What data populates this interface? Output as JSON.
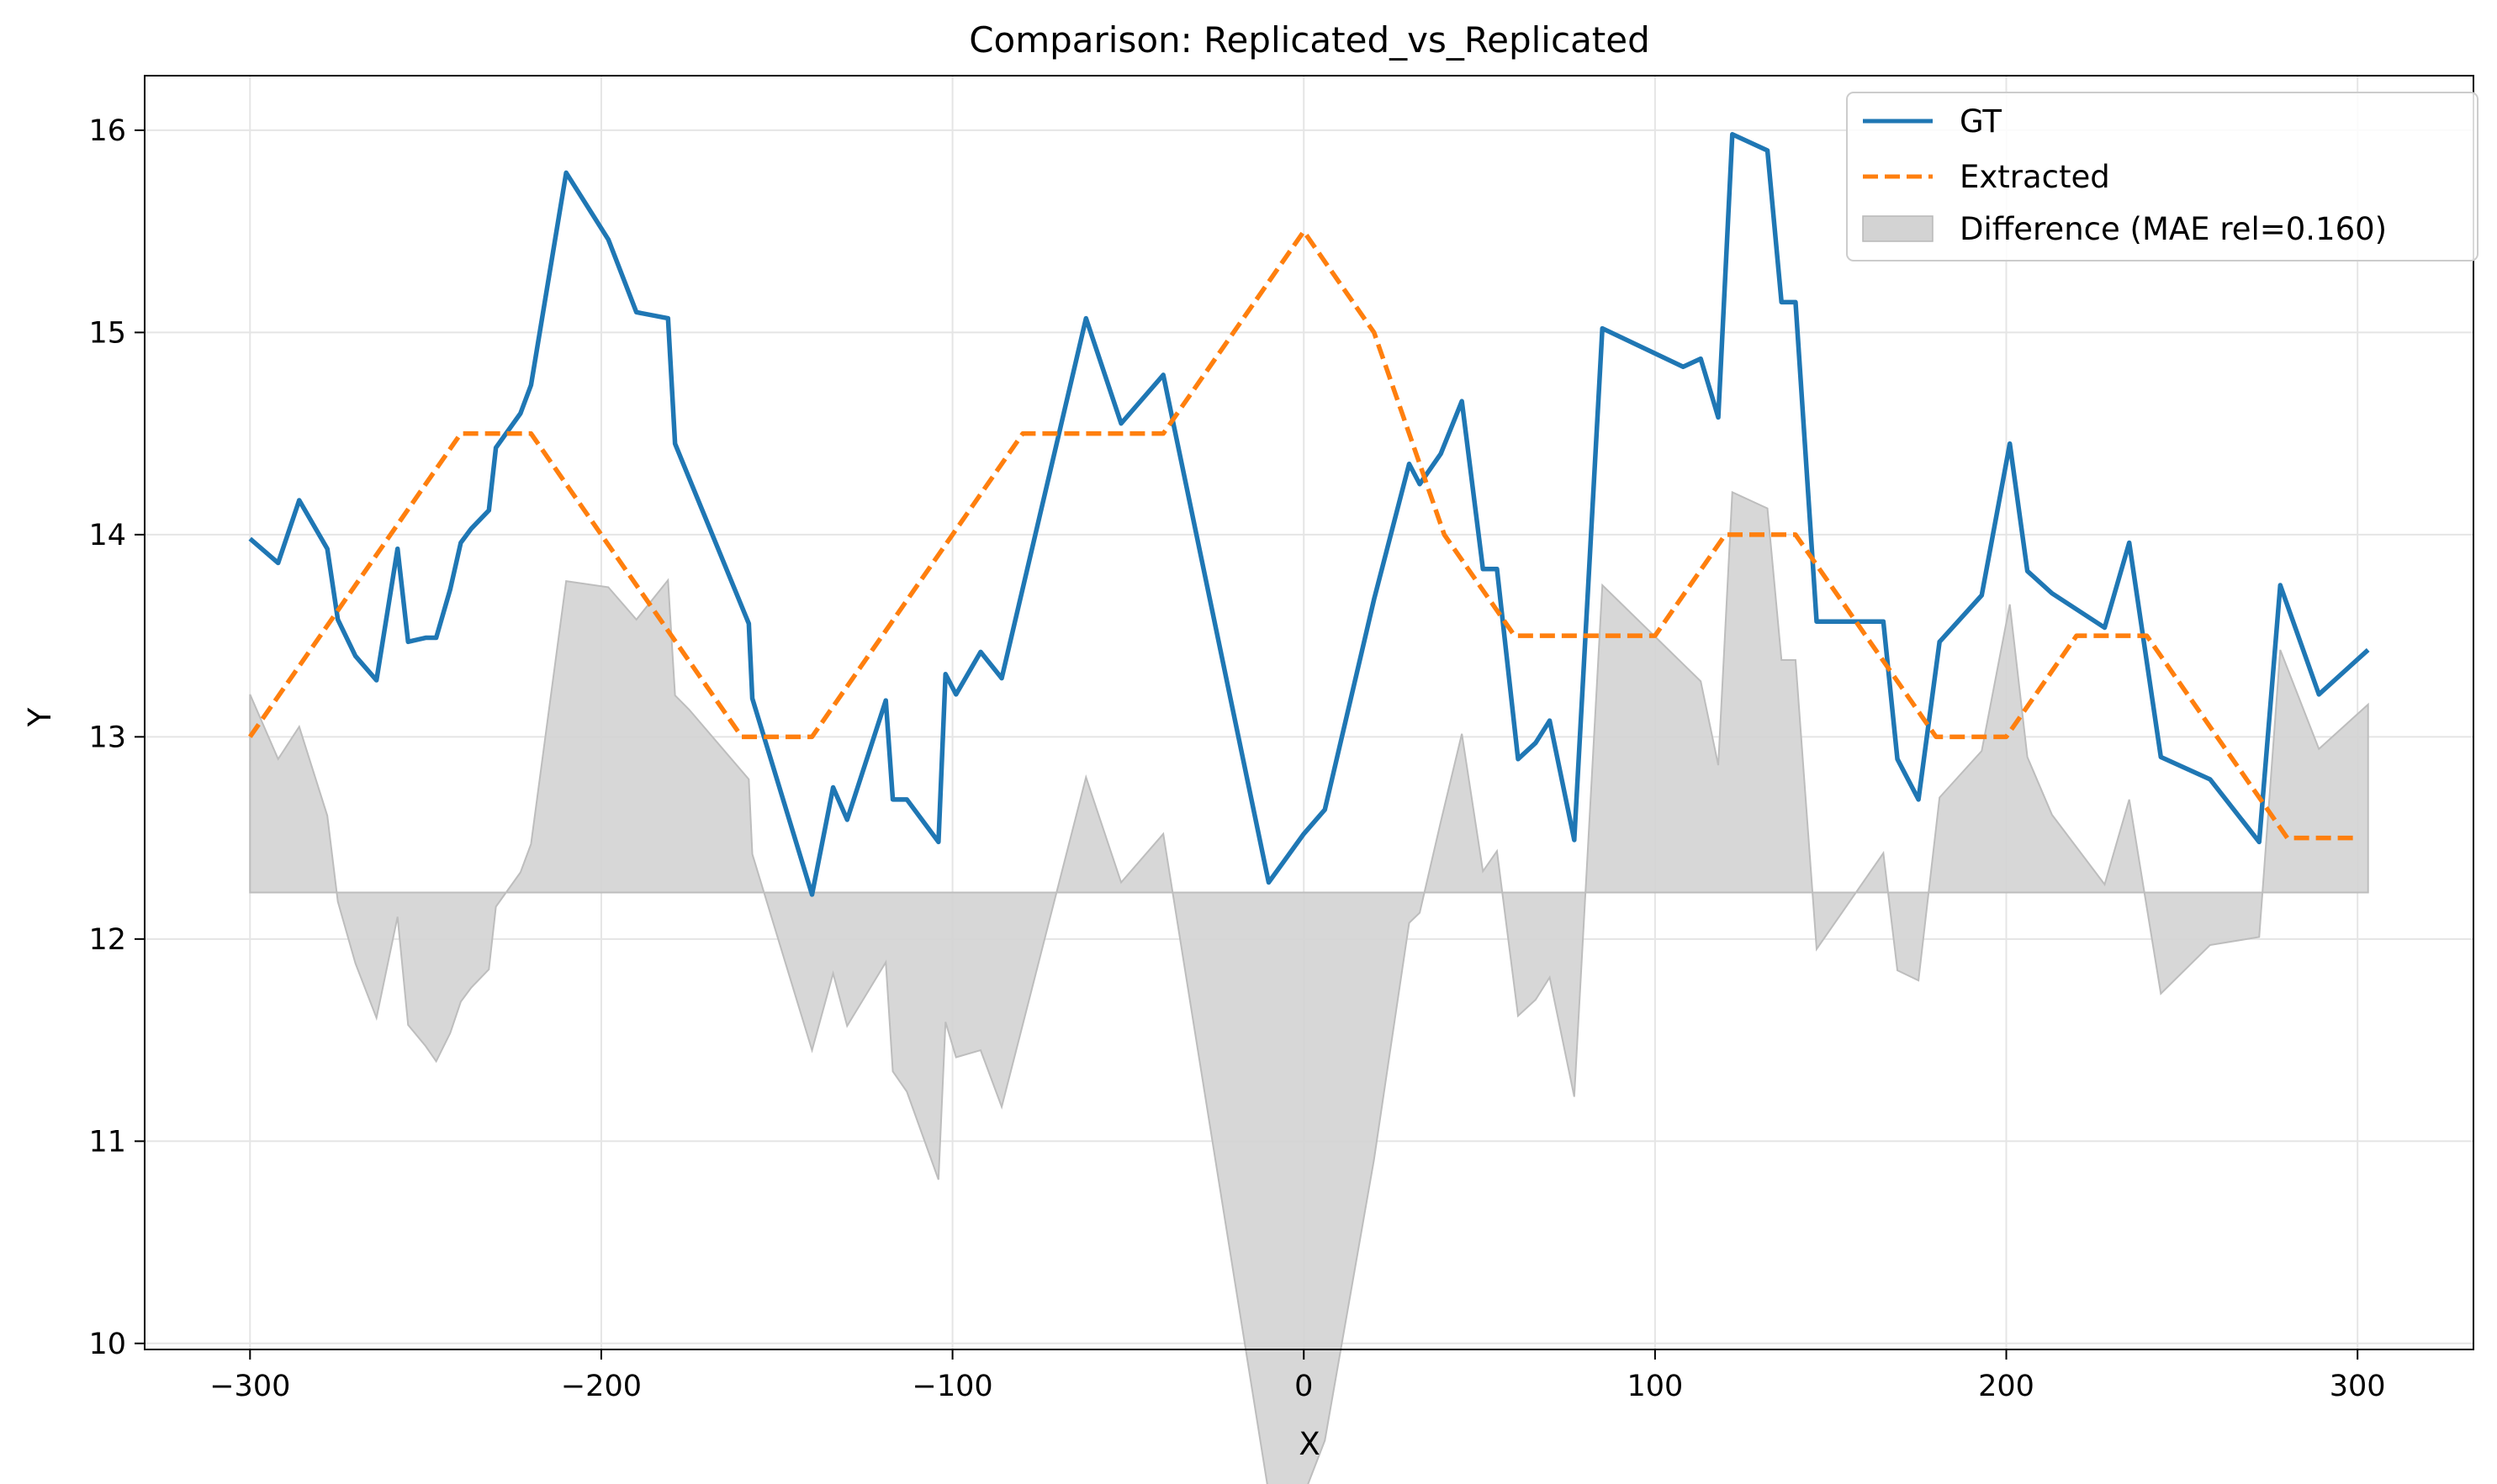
{
  "chart_data": {
    "type": "line",
    "title": "Comparison: Replicated_vs_Replicated",
    "xlabel": "X",
    "ylabel": "Y",
    "xlim": [
      -330,
      333
    ],
    "ylim": [
      9.97,
      16.27
    ],
    "grid": true,
    "legend_position": "top-right",
    "x_ticks": [
      -300,
      -200,
      -100,
      0,
      100,
      200,
      300
    ],
    "x_tick_labels": [
      "−300",
      "−200",
      "−100",
      "0",
      "100",
      "200",
      "300"
    ],
    "y_ticks": [
      10,
      11,
      12,
      13,
      14,
      15,
      16
    ],
    "y_tick_labels": [
      "10",
      "11",
      "12",
      "13",
      "14",
      "15",
      "16"
    ],
    "series": [
      {
        "name": "GT",
        "style": "solid",
        "color": "#1f77b4",
        "x": [
          -300,
          -292,
          -286,
          -278,
          -275,
          -270,
          -264,
          -258,
          -255,
          -250,
          -247,
          -243,
          -240,
          -237,
          -232,
          -230,
          -223,
          -220,
          -210,
          -198,
          -190,
          -181,
          -179,
          -175,
          -158,
          -157,
          -140,
          -134,
          -130,
          -119,
          -117,
          -113,
          -104,
          -102,
          -99,
          -92,
          -86,
          -62,
          -52,
          -40,
          -10,
          0,
          6,
          20,
          30,
          33,
          39,
          45,
          51,
          55,
          61,
          66,
          70,
          77,
          85,
          108,
          113,
          118,
          122,
          132,
          136,
          140,
          146,
          165,
          169,
          175,
          181,
          193,
          201,
          206,
          213,
          228,
          235,
          244,
          258,
          272,
          278,
          289,
          303
        ],
        "y": [
          13.98,
          13.86,
          14.17,
          13.93,
          13.58,
          13.4,
          13.28,
          13.93,
          13.47,
          13.49,
          13.49,
          13.73,
          13.96,
          14.03,
          14.12,
          14.43,
          14.6,
          14.74,
          15.79,
          15.46,
          15.1,
          15.07,
          14.45,
          14.28,
          13.56,
          13.19,
          12.22,
          12.75,
          12.59,
          13.18,
          12.69,
          12.69,
          12.48,
          13.31,
          13.21,
          13.42,
          13.29,
          15.07,
          14.55,
          14.79,
          12.28,
          12.52,
          12.64,
          13.68,
          14.35,
          14.25,
          14.4,
          14.66,
          13.83,
          13.83,
          12.89,
          12.97,
          13.08,
          12.49,
          15.02,
          14.83,
          14.87,
          14.58,
          15.98,
          15.9,
          15.15,
          15.15,
          13.57,
          13.57,
          12.89,
          12.69,
          13.47,
          13.7,
          14.45,
          13.82,
          13.71,
          13.54,
          13.96,
          12.9,
          12.79,
          12.48,
          13.75,
          13.21,
          13.43
        ]
      },
      {
        "name": "Extracted",
        "style": "dashed",
        "color": "#ff7f0e",
        "x": [
          -300,
          -240,
          -220,
          -160,
          -140,
          -80,
          -40,
          0,
          20,
          40,
          60,
          100,
          120,
          140,
          180,
          200,
          220,
          240,
          280,
          300
        ],
        "y": [
          13.0,
          14.5,
          14.5,
          13.0,
          13.0,
          14.5,
          14.5,
          15.5,
          15.0,
          14.0,
          13.5,
          13.5,
          14.0,
          14.0,
          13.0,
          13.0,
          13.5,
          13.5,
          12.5,
          12.5
        ]
      }
    ],
    "difference": {
      "name": "Difference (MAE rel=0.160)",
      "color": "#d3d3d3",
      "baseline": 12.23
    }
  }
}
